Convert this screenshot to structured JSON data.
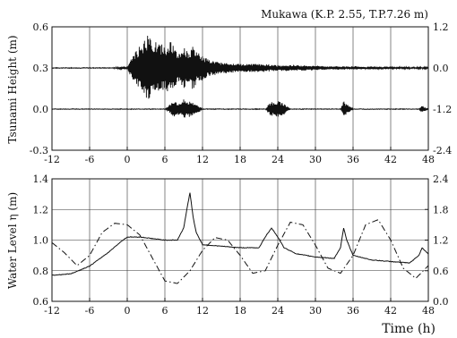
{
  "chart_data": [
    {
      "type": "line",
      "title": "Mukawa (K.P. 2.55, T.P.7.26 m)",
      "ylabel": "Tsunami Height (m)",
      "xlabel": "",
      "xlim": [
        -12,
        48
      ],
      "x_ticks": [
        -12,
        -6,
        0,
        6,
        12,
        18,
        24,
        30,
        36,
        42,
        48
      ],
      "x_tick_labels": [
        "-12",
        "-6",
        "0",
        "6",
        "12",
        "18",
        "24",
        "30",
        "36",
        "42",
        "48"
      ],
      "ylim": [
        -0.3,
        0.6
      ],
      "y_ticks": [
        -0.3,
        0.0,
        0.3,
        0.6
      ],
      "y_tick_labels": [
        "-0.3",
        "0.0",
        "0.3",
        "0.6"
      ],
      "y2lim": [
        -2.4,
        1.2
      ],
      "y2_ticks": [
        -2.4,
        -1.2,
        0.0,
        1.2
      ],
      "y2_tick_labels": [
        "-2.4",
        "-1.2",
        "0.0",
        "1.2"
      ],
      "grid": true,
      "series": [
        {
          "axis": "left",
          "style": "solid",
          "baseline": 0.3,
          "x": [
            -12,
            -3,
            0,
            1,
            2,
            3,
            3.5,
            4,
            5,
            6,
            7,
            8,
            9,
            10,
            10.5,
            11,
            12,
            13,
            15,
            18,
            21,
            24,
            27,
            30,
            33,
            36,
            39,
            42,
            45,
            48
          ],
          "y": [
            0.3,
            0.3,
            0.31,
            0.4,
            0.46,
            0.52,
            0.55,
            0.5,
            0.48,
            0.46,
            0.5,
            0.4,
            0.45,
            0.42,
            0.46,
            0.42,
            0.39,
            0.36,
            0.34,
            0.33,
            0.33,
            0.32,
            0.32,
            0.315,
            0.31,
            0.31,
            0.31,
            0.305,
            0.305,
            0.305
          ]
        },
        {
          "axis": "right",
          "style": "solid",
          "baseline": -1.2,
          "x": [
            -12,
            6,
            7.5,
            8.5,
            9,
            9.5,
            10,
            10.5,
            11,
            12,
            16,
            22,
            23,
            23.5,
            24,
            25,
            26,
            34,
            34.5,
            35,
            36,
            46.5,
            47,
            48
          ],
          "y": [
            -1.2,
            -1.2,
            -0.97,
            -1.05,
            -0.92,
            -1.0,
            -0.95,
            -1.02,
            -1.05,
            -1.2,
            -1.2,
            -1.2,
            -0.97,
            -1.05,
            -0.95,
            -1.05,
            -1.2,
            -1.2,
            -0.97,
            -1.05,
            -1.2,
            -1.2,
            -1.1,
            -1.2
          ]
        }
      ]
    },
    {
      "type": "line",
      "title": "",
      "ylabel": "Water Level η (m)",
      "xlabel": "Time (h)",
      "xlim": [
        -12,
        48
      ],
      "x_ticks": [
        -12,
        -6,
        0,
        6,
        12,
        18,
        24,
        30,
        36,
        42,
        48
      ],
      "x_tick_labels": [
        "-12",
        "-6",
        "0",
        "6",
        "12",
        "18",
        "24",
        "30",
        "36",
        "42",
        "48"
      ],
      "ylim": [
        0.6,
        1.4
      ],
      "y_ticks": [
        0.6,
        0.8,
        1.0,
        1.2,
        1.4
      ],
      "y_tick_labels": [
        "0.6",
        "0.8",
        "1.0",
        "1.2",
        "1.4"
      ],
      "y2lim": [
        0.0,
        2.4
      ],
      "y2_ticks": [
        0.0,
        0.6,
        1.2,
        1.8,
        2.4
      ],
      "y2_tick_labels": [
        "0.0",
        "0.6",
        "1.2",
        "1.8",
        "2.4"
      ],
      "grid": true,
      "series": [
        {
          "axis": "left",
          "style": "solid",
          "x": [
            -12,
            -9,
            -6,
            -3,
            -1,
            0,
            2,
            4,
            6,
            8,
            9,
            9.5,
            10,
            10.5,
            11,
            12,
            15,
            18,
            21,
            22,
            23,
            24,
            25,
            27,
            30,
            33,
            34,
            34.5,
            35,
            36,
            39,
            42,
            45,
            46.5,
            47,
            48
          ],
          "y": [
            0.77,
            0.78,
            0.83,
            0.92,
            0.99,
            1.02,
            1.02,
            1.01,
            1.0,
            1.0,
            1.08,
            1.2,
            1.31,
            1.15,
            1.05,
            0.97,
            0.96,
            0.95,
            0.95,
            1.02,
            1.08,
            1.02,
            0.95,
            0.91,
            0.89,
            0.88,
            0.95,
            1.08,
            1.0,
            0.9,
            0.87,
            0.86,
            0.85,
            0.9,
            0.95,
            0.91
          ]
        },
        {
          "axis": "right",
          "style": "dash-dot",
          "x": [
            -12,
            -10,
            -8,
            -6,
            -4,
            -2,
            0,
            2,
            4,
            6,
            8,
            10,
            12,
            14,
            16,
            18,
            20,
            22,
            24,
            26,
            28,
            30,
            32,
            34,
            36,
            38,
            40,
            42,
            44,
            46,
            48
          ],
          "y": [
            1.15,
            0.95,
            0.7,
            0.9,
            1.35,
            1.53,
            1.5,
            1.3,
            0.85,
            0.4,
            0.35,
            0.6,
            1.0,
            1.25,
            1.2,
            0.9,
            0.55,
            0.6,
            1.1,
            1.55,
            1.5,
            1.1,
            0.65,
            0.55,
            0.9,
            1.5,
            1.6,
            1.2,
            0.65,
            0.45,
            0.7
          ]
        }
      ]
    }
  ]
}
